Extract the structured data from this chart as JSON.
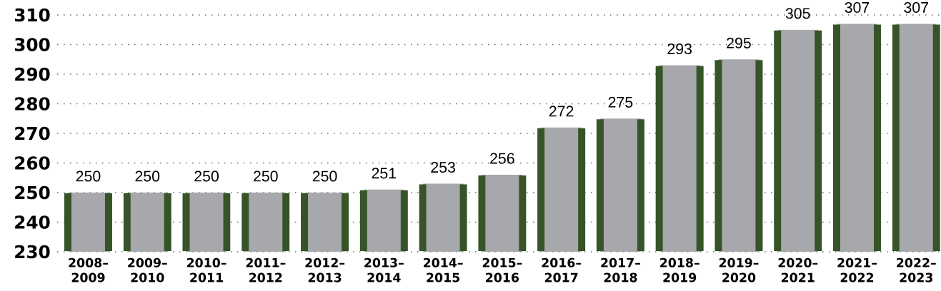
{
  "chart_data": {
    "type": "bar",
    "categories": [
      "2008–2009",
      "2009–2010",
      "2010–2011",
      "2011–2012",
      "2012–2013",
      "2013–2014",
      "2014–2015",
      "2015–2016",
      "2016–2017",
      "2017–2018",
      "2018–2019",
      "2019–2020",
      "2020–2021",
      "2021–2022",
      "2022–2023"
    ],
    "values": [
      250,
      250,
      250,
      250,
      250,
      251,
      253,
      256,
      272,
      275,
      293,
      295,
      305,
      307,
      307
    ],
    "color": "#a7a8ab",
    "ylim": [
      230,
      310
    ],
    "yticks": [
      230,
      240,
      250,
      260,
      270,
      280,
      290,
      300,
      310
    ],
    "grid": "y",
    "data_labels": true
  }
}
